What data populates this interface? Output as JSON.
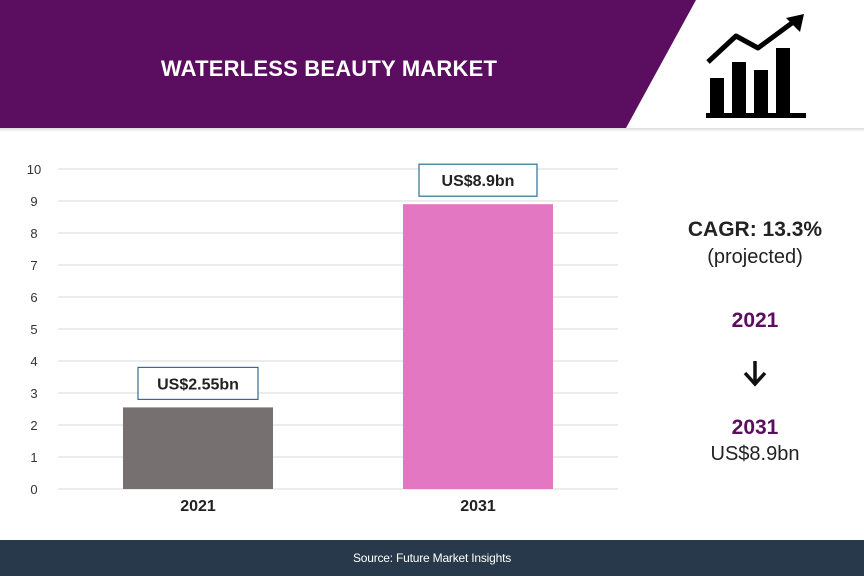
{
  "colors": {
    "header_purple": "#5b0d5f",
    "bar_2021": "#767170",
    "bar_2031": "#e377c2",
    "label_border": "#2f6f95",
    "year_text": "#5b0d5f",
    "footer_bg": "#27394a",
    "grid": "#d9d9d9"
  },
  "header": {
    "title": "WATERLESS BEAUTY MARKET",
    "icon": "bar-chart-growth-icon"
  },
  "chart_data": {
    "type": "bar",
    "categories": [
      "2021",
      "2031"
    ],
    "values": [
      2.55,
      8.9
    ],
    "value_labels": [
      "US$2.55bn",
      "US$8.9bn"
    ],
    "y_ticks": [
      "0",
      "1",
      "2",
      "3",
      "4",
      "5",
      "6",
      "7",
      "8",
      "9",
      "10"
    ],
    "ylim": [
      0,
      10
    ],
    "grid": true
  },
  "summary": {
    "cagr": "CAGR: 13.3%",
    "projected": "(projected)",
    "start_year": "2021",
    "arrow_icon": "arrow-down-icon",
    "end_year": "2031",
    "end_value": "US$8.9bn"
  },
  "footer": {
    "source": "Source: Future Market Insights"
  }
}
